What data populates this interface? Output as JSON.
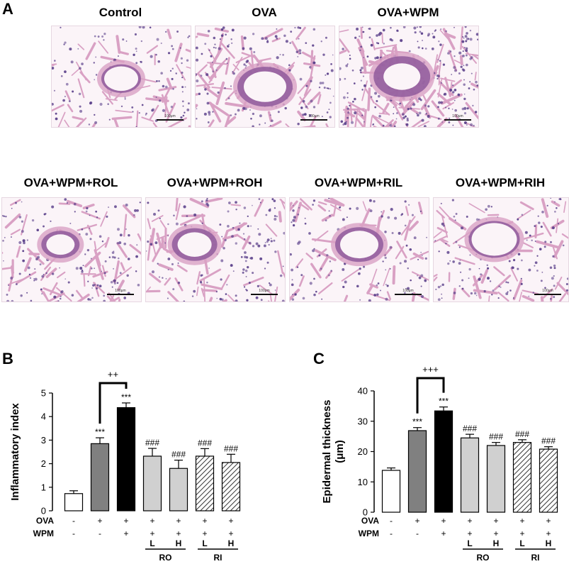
{
  "panel_a": {
    "letter": "A",
    "images": [
      {
        "title": "Control",
        "scale_text": "100μm"
      },
      {
        "title": "OVA",
        "scale_text": "100μm"
      },
      {
        "title": "OVA+WPM",
        "scale_text": "100μm"
      },
      {
        "title": "OVA+WPM+ROL",
        "scale_text": "100μm"
      },
      {
        "title": "OVA+WPM+ROH",
        "scale_text": "100μm"
      },
      {
        "title": "OVA+WPM+RIL",
        "scale_text": "100μm"
      },
      {
        "title": "OVA+WPM+RIH",
        "scale_text": "100μm"
      }
    ]
  },
  "colors": {
    "tissue_background": "#fbf4f8",
    "tissue_pink": "#d9a1c4",
    "tissue_purple": "#8f5a9c",
    "nuclei": "#5a3f8a",
    "bar_control": "#ffffff",
    "bar_ova": "#808080",
    "bar_wpm": "#000000",
    "bar_ro": "#d0d0d0",
    "bar_ri_hatch": "#333333"
  },
  "chart_data": [
    {
      "type": "bar",
      "panel_letter": "B",
      "ylabel": "Inflammatory index",
      "ylim": [
        0,
        5
      ],
      "yticks": [
        "0",
        "1",
        "2",
        "3",
        "4",
        "5"
      ],
      "values": [
        0.73,
        2.85,
        4.38,
        2.32,
        1.8,
        2.32,
        2.05
      ],
      "errors": [
        0.12,
        0.25,
        0.2,
        0.33,
        0.35,
        0.32,
        0.35
      ],
      "fills": [
        "white",
        "gray",
        "black",
        "lightgray",
        "lightgray",
        "hatch",
        "hatch"
      ],
      "annotations": [
        "",
        "***",
        "***",
        "###",
        "###",
        "###",
        "###"
      ],
      "bracket_label": "++",
      "rows": [
        {
          "label": "OVA",
          "values": [
            "-",
            "+",
            "+",
            "+",
            "+",
            "+",
            "+"
          ]
        },
        {
          "label": "WPM",
          "values": [
            "-",
            "-",
            "+",
            "+",
            "+",
            "+",
            "+"
          ]
        }
      ],
      "dose_labels": [
        "",
        "",
        "",
        "L",
        "H",
        "L",
        "H"
      ],
      "groups": [
        {
          "label": "RO",
          "start": 3,
          "end": 4
        },
        {
          "label": "RI",
          "start": 5,
          "end": 6
        }
      ]
    },
    {
      "type": "bar",
      "panel_letter": "C",
      "ylabel": "Epidermal thickness (μm)",
      "ylabel_lines": [
        "Epidermal thickness",
        "(μm)"
      ],
      "ylim": [
        0,
        40
      ],
      "yticks": [
        "0",
        "10",
        "20",
        "30",
        "40"
      ],
      "values": [
        13.8,
        26.9,
        33.4,
        24.5,
        22.0,
        23.0,
        20.8
      ],
      "errors": [
        0.8,
        1.0,
        1.3,
        1.2,
        1.0,
        0.9,
        0.8
      ],
      "fills": [
        "white",
        "gray",
        "black",
        "lightgray",
        "lightgray",
        "hatch",
        "hatch"
      ],
      "annotations": [
        "",
        "***",
        "***",
        "###",
        "###",
        "###",
        "###"
      ],
      "bracket_label": "+++",
      "rows": [
        {
          "label": "OVA",
          "values": [
            "-",
            "+",
            "+",
            "+",
            "+",
            "+",
            "+"
          ]
        },
        {
          "label": "WPM",
          "values": [
            "-",
            "-",
            "+",
            "+",
            "+",
            "+",
            "+"
          ]
        }
      ],
      "dose_labels": [
        "",
        "",
        "",
        "L",
        "H",
        "L",
        "H"
      ],
      "groups": [
        {
          "label": "RO",
          "start": 3,
          "end": 4
        },
        {
          "label": "RI",
          "start": 5,
          "end": 6
        }
      ]
    }
  ]
}
